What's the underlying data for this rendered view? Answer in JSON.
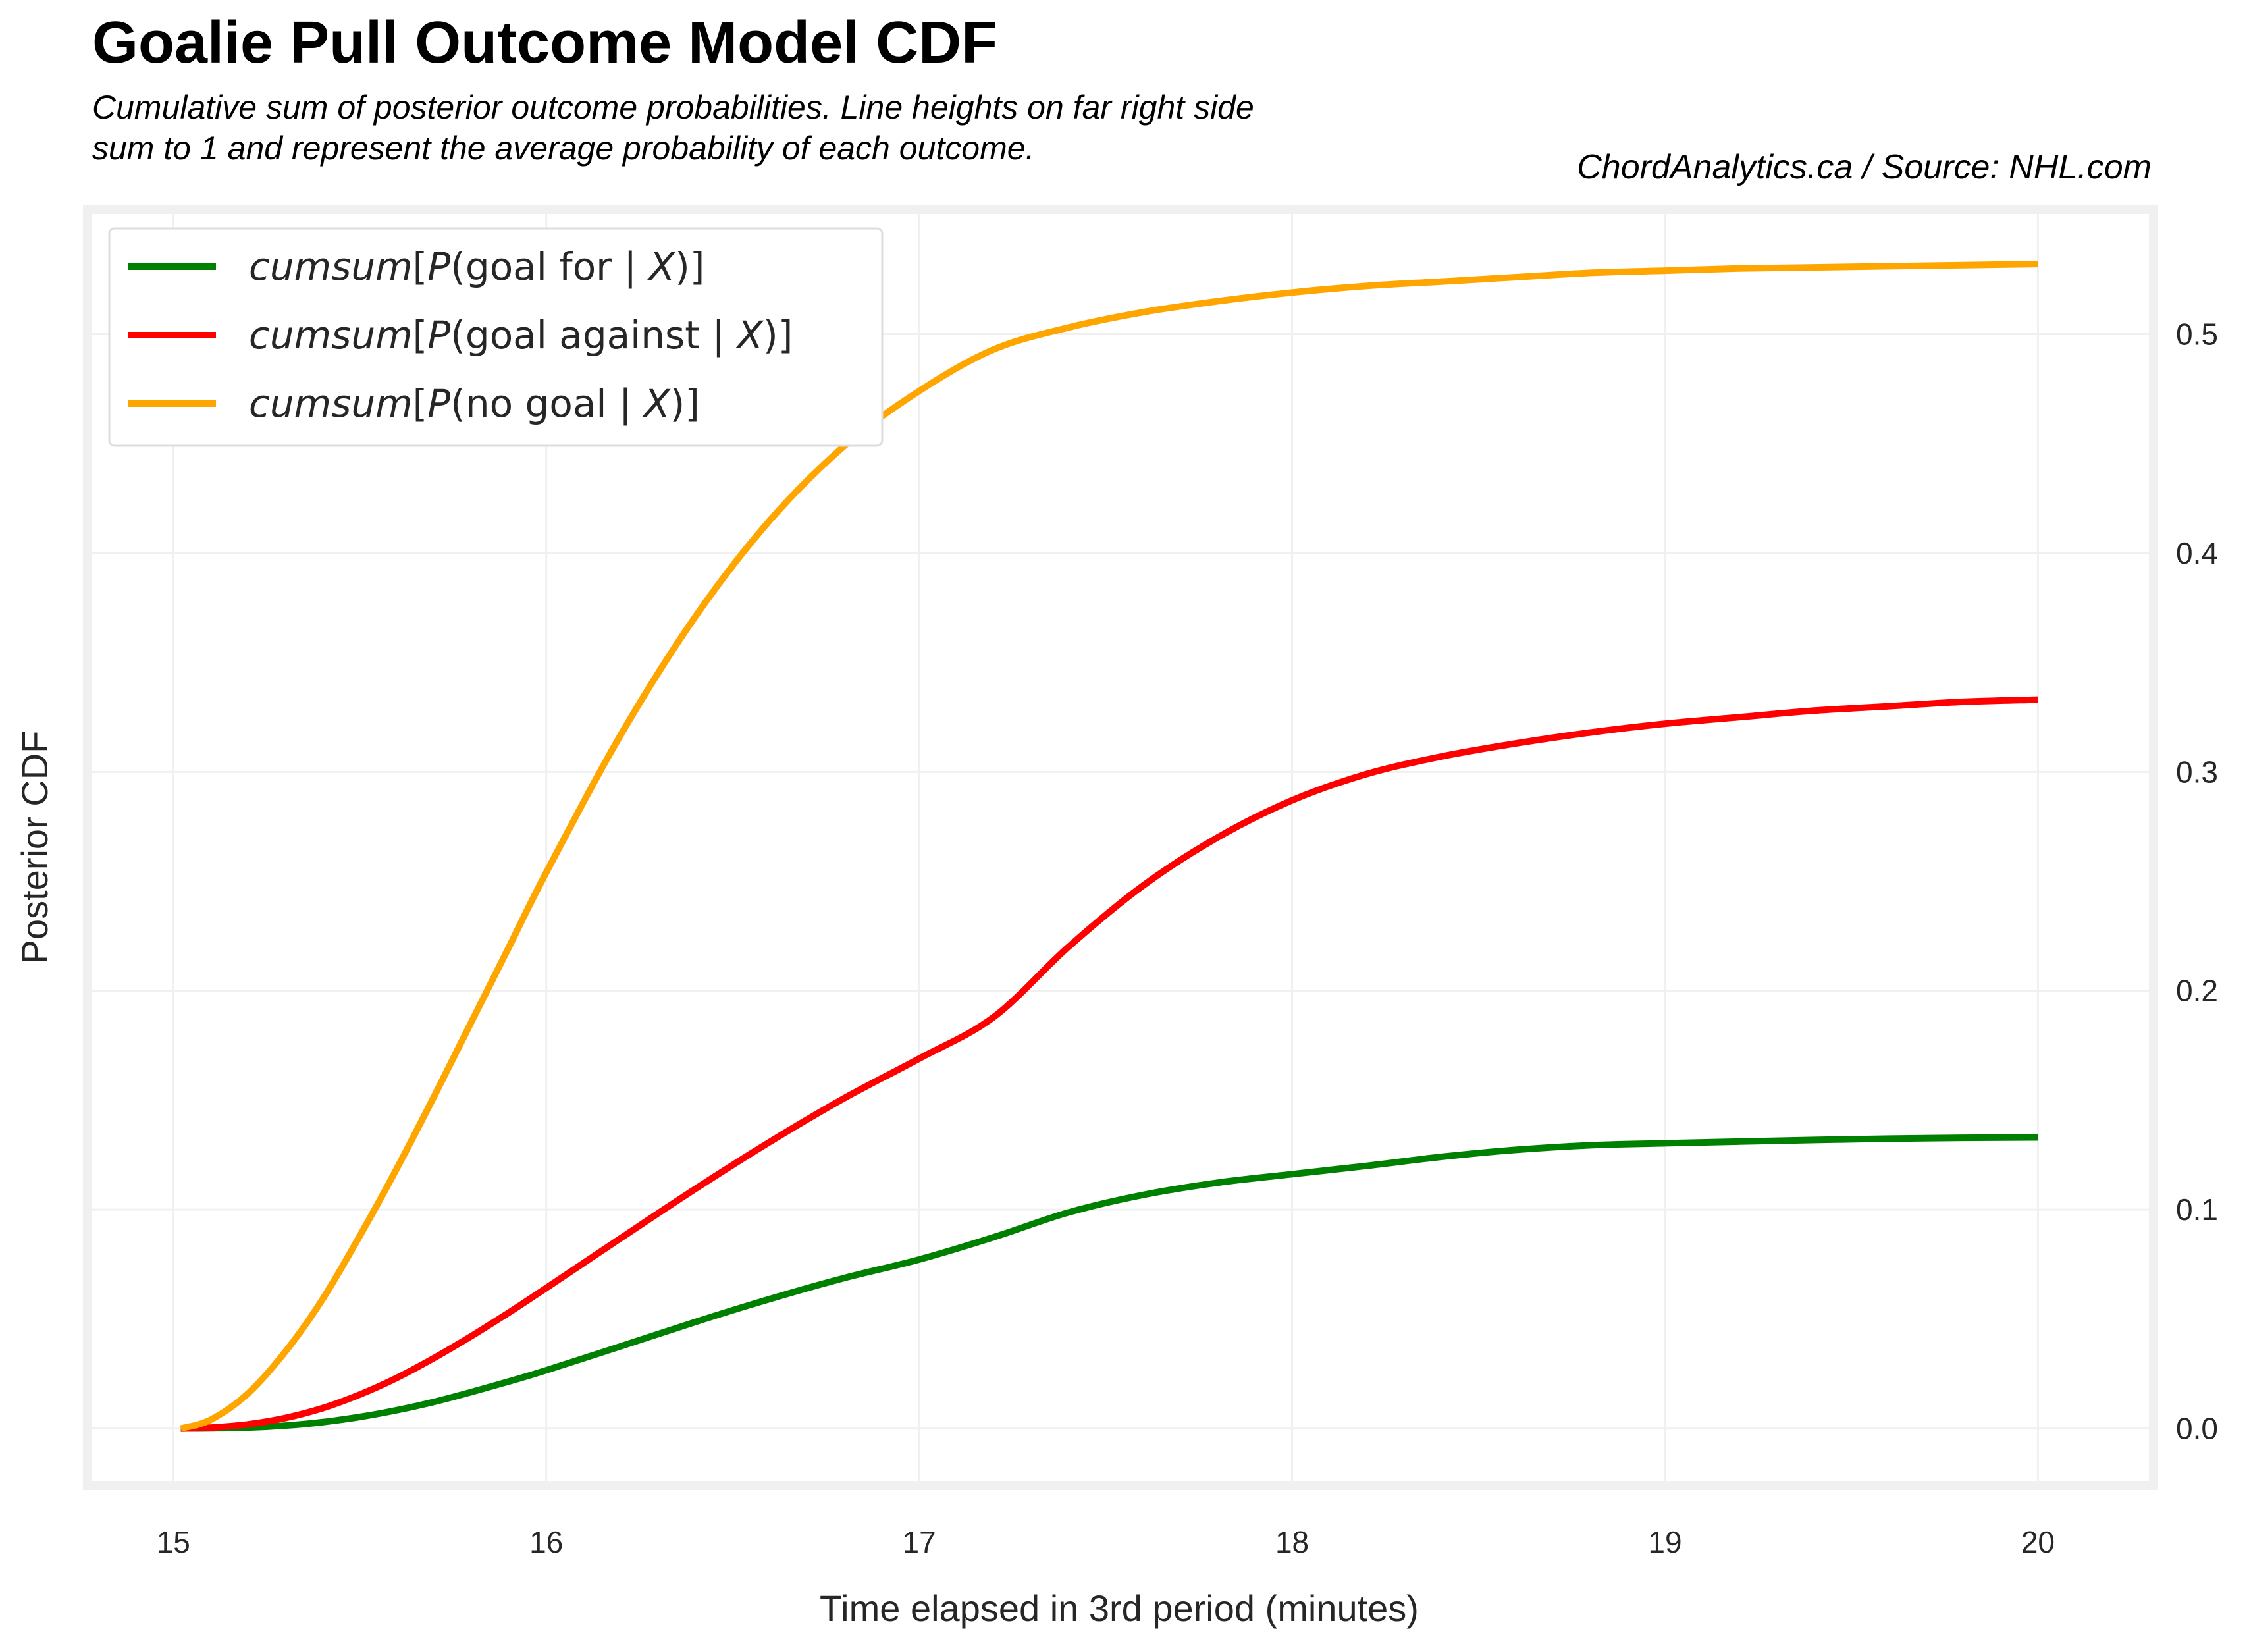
{
  "chart_data": {
    "type": "line",
    "title": "Goalie Pull Outcome Model CDF",
    "subtitle_lines": [
      "Cumulative sum of posterior outcome probabilities. Line heights on far right side",
      "sum to 1 and represent the average probability of each outcome."
    ],
    "credit": "ChordAnalytics.ca  /  Source: NHL.com",
    "xlabel": "Time elapsed in 3rd period (minutes)",
    "ylabel": "Posterior CDF",
    "xlim": [
      14.77,
      20.31
    ],
    "ylim": [
      -0.026,
      0.557
    ],
    "xticks": [
      15,
      16,
      17,
      18,
      19,
      20
    ],
    "yticks": [
      0.0,
      0.1,
      0.2,
      0.3,
      0.4,
      0.5
    ],
    "ytick_labels": [
      "0.0",
      "0.1",
      "0.2",
      "0.3",
      "0.4",
      "0.5"
    ],
    "y_axis_side": "right",
    "grid": true,
    "legend_position": "top-left",
    "series": [
      {
        "name": "goal for",
        "legend_parts": [
          "cumsum",
          "[",
          "P",
          "(goal for | ",
          "X",
          ")]"
        ],
        "color": "#008000",
        "x": [
          15.02,
          15.1,
          15.2,
          15.3,
          15.4,
          15.5,
          15.6,
          15.7,
          15.8,
          15.9,
          16.0,
          16.2,
          16.4,
          16.6,
          16.8,
          17.0,
          17.2,
          17.4,
          17.6,
          17.8,
          18.0,
          18.2,
          18.4,
          18.6,
          18.8,
          19.0,
          19.2,
          19.4,
          19.6,
          19.8,
          20.0
        ],
        "values": [
          0.0,
          0.0001,
          0.0004,
          0.0013,
          0.0029,
          0.0053,
          0.0084,
          0.0122,
          0.0167,
          0.0215,
          0.0266,
          0.0376,
          0.0487,
          0.0592,
          0.0688,
          0.0772,
          0.0874,
          0.0987,
          0.1067,
          0.1123,
          0.1162,
          0.12,
          0.1241,
          0.1273,
          0.1294,
          0.1303,
          0.1311,
          0.1318,
          0.1324,
          0.1328,
          0.133
        ]
      },
      {
        "name": "goal against",
        "legend_parts": [
          "cumsum",
          "[",
          "P",
          "(goal against | ",
          "X",
          ")]"
        ],
        "color": "#ff0000",
        "x": [
          15.02,
          15.1,
          15.2,
          15.3,
          15.4,
          15.5,
          15.6,
          15.7,
          15.8,
          15.9,
          16.0,
          16.2,
          16.4,
          16.6,
          16.8,
          17.0,
          17.2,
          17.4,
          17.6,
          17.8,
          18.0,
          18.2,
          18.4,
          18.6,
          18.8,
          19.0,
          19.2,
          19.4,
          19.6,
          19.8,
          20.0
        ],
        "values": [
          0.0,
          0.0004,
          0.0019,
          0.0048,
          0.0093,
          0.0155,
          0.0232,
          0.0323,
          0.0423,
          0.053,
          0.0642,
          0.087,
          0.1095,
          0.131,
          0.151,
          0.169,
          0.188,
          0.22,
          0.248,
          0.27,
          0.287,
          0.299,
          0.307,
          0.313,
          0.318,
          0.322,
          0.325,
          0.328,
          0.33,
          0.332,
          0.333
        ]
      },
      {
        "name": "no goal",
        "legend_parts": [
          "cumsum",
          "[",
          "P",
          "(no goal | ",
          "X",
          ")]"
        ],
        "color": "#ffa500",
        "x": [
          15.02,
          15.1,
          15.2,
          15.3,
          15.4,
          15.5,
          15.6,
          15.7,
          15.8,
          15.9,
          16.0,
          16.2,
          16.4,
          16.6,
          16.8,
          17.0,
          17.2,
          17.4,
          17.6,
          17.8,
          18.0,
          18.2,
          18.4,
          18.6,
          18.8,
          19.0,
          19.2,
          19.4,
          19.6,
          19.8,
          20.0
        ],
        "values": [
          0.0,
          0.004,
          0.016,
          0.035,
          0.059,
          0.088,
          0.119,
          0.152,
          0.186,
          0.22,
          0.254,
          0.317,
          0.371,
          0.415,
          0.449,
          0.474,
          0.493,
          0.503,
          0.51,
          0.515,
          0.519,
          0.522,
          0.524,
          0.526,
          0.528,
          0.529,
          0.53,
          0.5305,
          0.531,
          0.5315,
          0.532
        ]
      }
    ]
  }
}
